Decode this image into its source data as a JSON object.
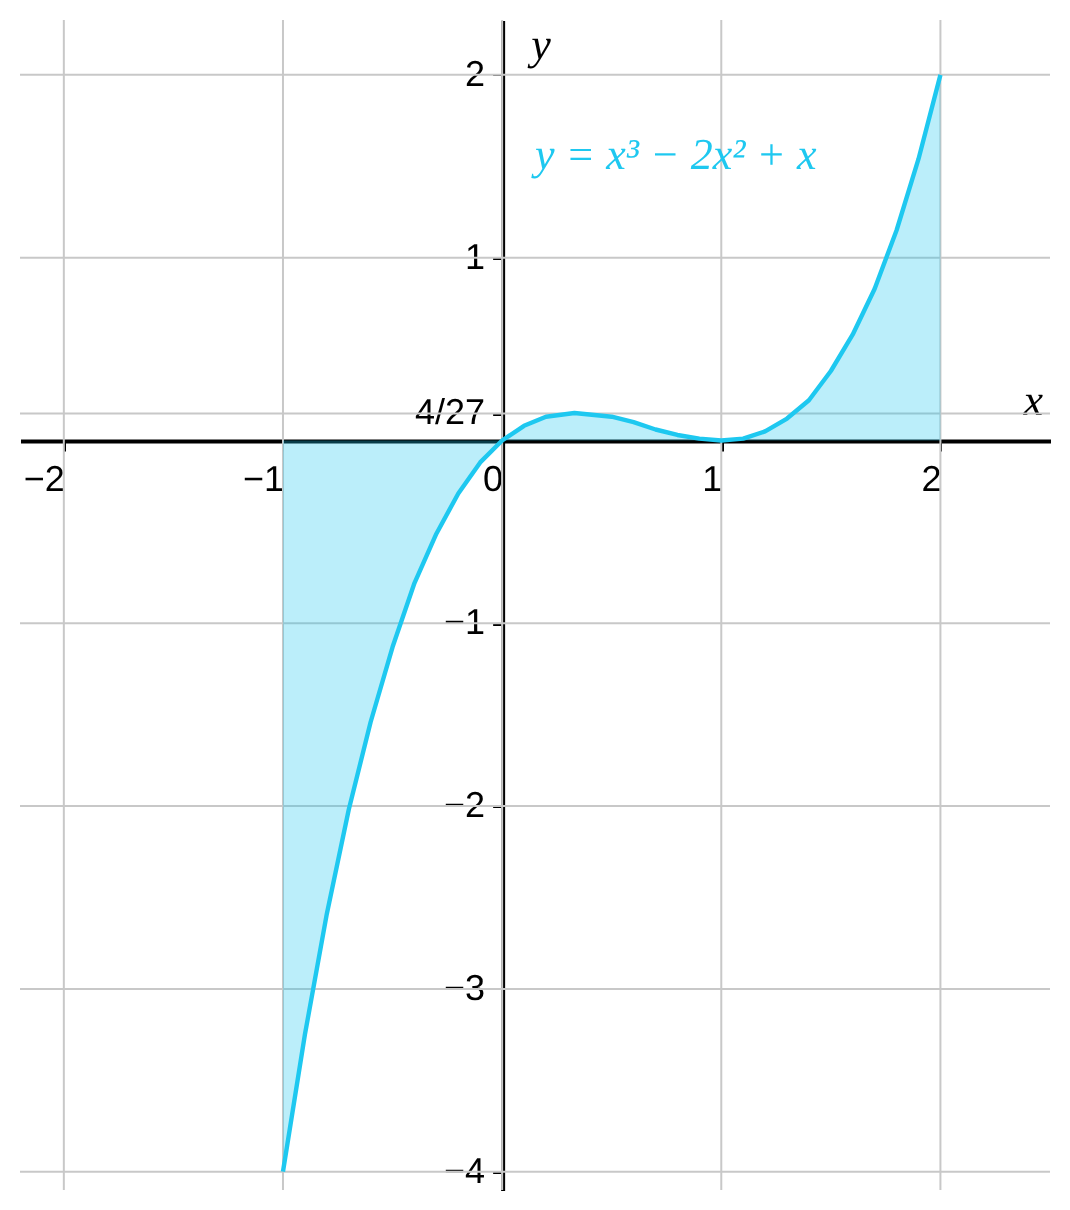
{
  "chart_data": {
    "type": "area",
    "xlabel": "x",
    "ylabel": "y",
    "x": [
      -1,
      -0.9,
      -0.8,
      -0.7,
      -0.6,
      -0.5,
      -0.4,
      -0.3,
      -0.2,
      -0.1,
      0,
      0.1,
      0.2,
      0.33,
      0.5,
      0.6,
      0.7,
      0.8,
      0.9,
      1,
      1.1,
      1.2,
      1.3,
      1.4,
      1.5,
      1.6,
      1.7,
      1.8,
      1.9,
      2
    ],
    "series": [
      {
        "name": "y = x³ − 2x² + x",
        "color": "#1ec8f0",
        "values": [
          -4,
          -3.25,
          -2.59,
          -2.02,
          -1.54,
          -1.13,
          -0.78,
          -0.51,
          -0.29,
          -0.12,
          0,
          0.08,
          0.13,
          0.15,
          0.13,
          0.1,
          0.06,
          0.03,
          0.01,
          0,
          0.01,
          0.05,
          0.12,
          0.22,
          0.38,
          0.58,
          0.83,
          1.15,
          1.54,
          2
        ]
      }
    ],
    "xlim": [
      -2.2,
      2.5
    ],
    "ylim": [
      -4.1,
      2.3
    ],
    "xticks": [
      -2,
      -1,
      0,
      1,
      2
    ],
    "yticks": [
      -4,
      -3,
      -2,
      -1,
      {
        "value": 0.148,
        "label": "4/27"
      },
      1,
      2
    ],
    "grid": true
  }
}
